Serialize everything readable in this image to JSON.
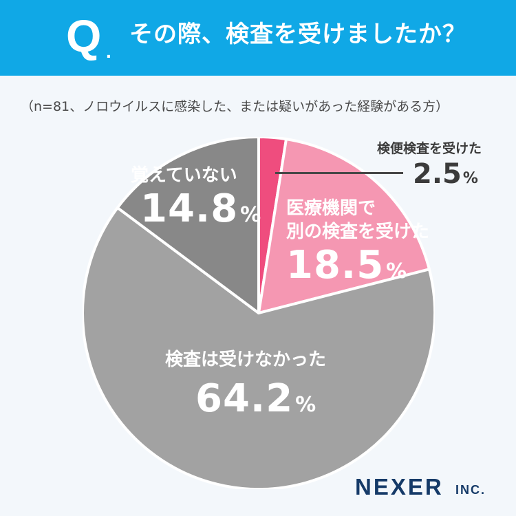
{
  "header": {
    "q_mark": "Q",
    "q_dot": ".",
    "title": "その際、検査を受けましたか？",
    "background_color": "#10a8e6"
  },
  "subtitle": "（n=81、ノロウイルスに感染した、または疑いがあった経験がある方）",
  "chart_data": {
    "type": "pie",
    "categories": [
      "検便検査を受けた",
      "医療機関で別の検査を受けた",
      "検査は受けなかった",
      "覚えていない"
    ],
    "values": [
      2.5,
      18.5,
      64.2,
      14.8
    ],
    "colors": [
      "#ef4d7e",
      "#f597b2",
      "#a2a2a2",
      "#888888"
    ],
    "unit": "%",
    "start_angle_deg": 0,
    "direction": "clockwise"
  },
  "labels": {
    "callout": {
      "name": "検便検査を受けた",
      "pct": "2.5",
      "unit": "%"
    },
    "medical": {
      "line1": "医療機関で",
      "line2": "別の検査を受けた",
      "pct": "18.5",
      "unit": "%"
    },
    "none": {
      "name": "検査は受けなかった",
      "pct": "64.2",
      "unit": "%"
    },
    "forgot": {
      "name": "覚えていない",
      "pct": "14.8",
      "unit": "%"
    }
  },
  "brand": {
    "name": "NEXER",
    "suffix": "INC."
  }
}
